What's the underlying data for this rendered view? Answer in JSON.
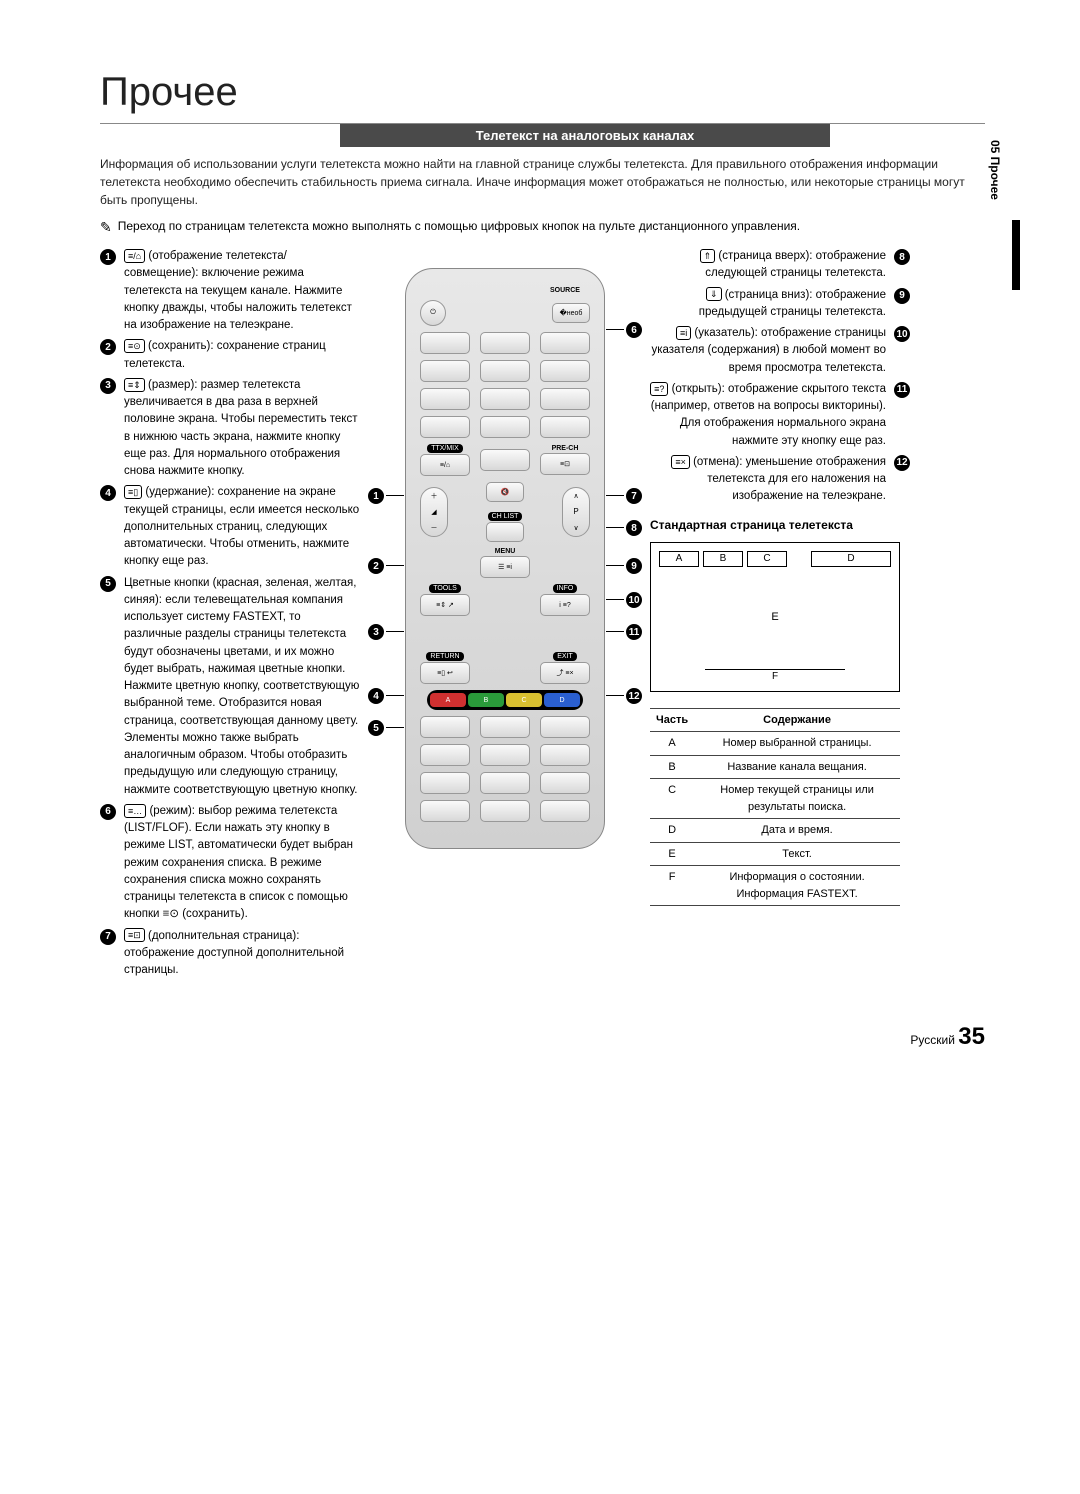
{
  "page_title": "Прочее",
  "section_header": "Телетекст на аналоговых каналах",
  "side_tab": "05  Прочее",
  "intro": "Информация об использовании услуги телетекста можно найти на главной странице службы телетекста. Для правильного отображения информации телетекста необходимо обеспечить стабильность приема сигнала. Иначе информация может отображаться не полностью, или некоторые страницы могут быть пропущены.",
  "note": "Переход по страницам телетекста можно выполнять с помощью цифровых кнопок на пульте дистанционного управления.",
  "left_items": [
    {
      "n": "1",
      "icon": "≡/⌂",
      "text": "(отображение телетекста/совмещение): включение режима телетекста на текущем канале. Нажмите кнопку дважды, чтобы наложить телетекст на изображение на телеэкране."
    },
    {
      "n": "2",
      "icon": "≡⊙",
      "text": "(сохранить): сохранение страниц телетекста."
    },
    {
      "n": "3",
      "icon": "≡⇕",
      "text": "(размер): размер телетекста увеличивается в два раза в верхней половине экрана. Чтобы переместить текст в нижнюю часть экрана, нажмите кнопку еще раз. Для нормального отображения снова нажмите кнопку."
    },
    {
      "n": "4",
      "icon": "≡▯",
      "text": "(удержание): сохранение на экране текущей страницы, если имеется несколько дополнительных страниц, следующих автоматически. Чтобы отменить, нажмите кнопку еще раз."
    },
    {
      "n": "5",
      "icon": "",
      "text": "Цветные кнопки (красная, зеленая, желтая, синяя): если телевещательная компания использует систему FASTEXT, то различные разделы страницы телетекста будут обозначены цветами, и их можно будет выбрать, нажимая цветные кнопки. Нажмите цветную кнопку, соответствующую выбранной теме. Отобразится новая страница, соответствующая данному цвету. Элементы можно также выбрать аналогичным образом. Чтобы отобразить предыдущую или следующую страницу, нажмите соответствующую цветную кнопку."
    },
    {
      "n": "6",
      "icon": "≡…",
      "text": "(режим): выбор режима телетекста (LIST/FLOF). Если нажать эту кнопку в режиме LIST, автоматически будет выбран режим сохранения списка. В режиме сохранения списка можно сохранять страницы телетекста в список с помощью кнопки ≡⊙ (сохранить)."
    },
    {
      "n": "7",
      "icon": "≡⊡",
      "text": "(дополнительная страница): отображение доступной дополнительной страницы."
    }
  ],
  "right_items": [
    {
      "n": "8",
      "icon": "⇑",
      "text": "(страница вверх): отображение следующей страницы телетекста."
    },
    {
      "n": "9",
      "icon": "⇓",
      "text": "(страница вниз): отображение предыдущей страницы телетекста."
    },
    {
      "n": "10",
      "icon": "≡i",
      "text": "(указатель): отображение страницы указателя (содержания) в любой момент во время просмотра телетекста."
    },
    {
      "n": "11",
      "icon": "≡?",
      "text": "(открыть): отображение скрытого текста (например, ответов на вопросы викторины). Для отображения нормального экрана нажмите эту кнопку еще раз."
    },
    {
      "n": "12",
      "icon": "≡×",
      "text": "(отмена): уменьшение отображения телетекста для его наложения на изображение на телеэкране."
    }
  ],
  "standard_page_heading": "Стандартная страница телетекста",
  "tv_labels": {
    "A": "A",
    "B": "B",
    "C": "C",
    "D": "D",
    "E": "E",
    "F": "F"
  },
  "table_header": {
    "part": "Часть",
    "content": "Содержание"
  },
  "table_rows": [
    {
      "part": "A",
      "content": "Номер выбранной страницы."
    },
    {
      "part": "B",
      "content": "Название канала вещания."
    },
    {
      "part": "C",
      "content": "Номер текущей страницы или результаты поиска."
    },
    {
      "part": "D",
      "content": "Дата и время."
    },
    {
      "part": "E",
      "content": "Текст."
    },
    {
      "part": "F",
      "content": "Информация о состоянии. Информация FASTEXT."
    }
  ],
  "remote": {
    "source": "SOURCE",
    "ttx": "TTX/MIX",
    "prech": "PRE-CH",
    "chlist": "CH LIST",
    "menu": "MENU",
    "tools": "TOOLS",
    "info": "INFO",
    "return": "RETURN",
    "exit": "EXIT",
    "colors": {
      "a": "A",
      "b": "B",
      "c": "C",
      "d": "D"
    },
    "color_hex": {
      "a": "#d03030",
      "b": "#2a9a3a",
      "c": "#d8c030",
      "d": "#2a5fd0"
    }
  },
  "footer_lang": "Русский",
  "footer_page": "35"
}
